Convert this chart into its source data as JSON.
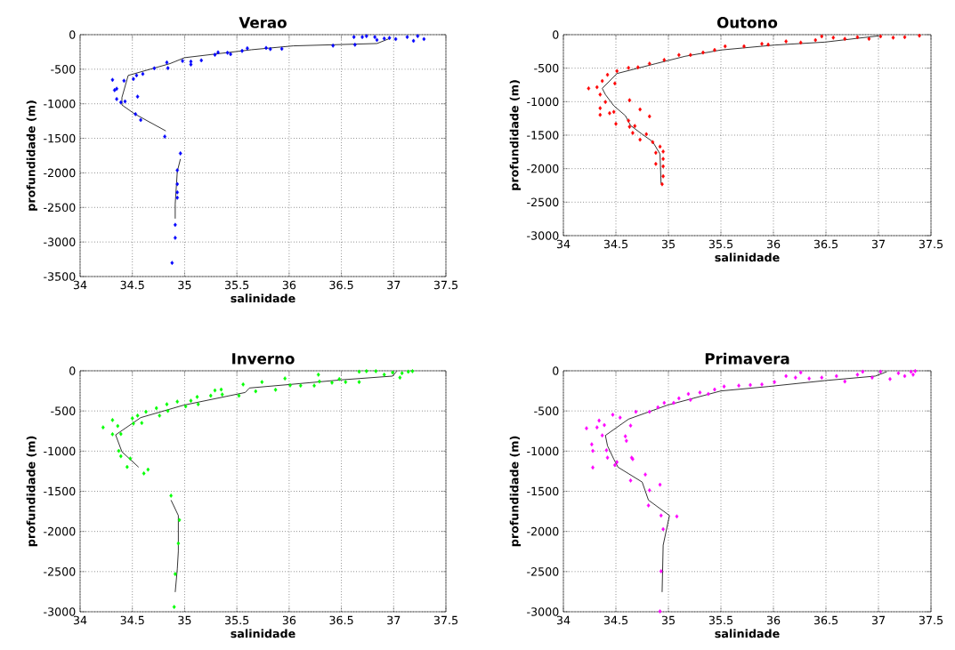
{
  "chart_data": [
    {
      "type": "scatter",
      "title": "Verao",
      "xlabel": "salinidade",
      "ylabel": "profundidade (m)",
      "xlim": [
        34,
        37.5
      ],
      "xticks": [
        34,
        34.5,
        35,
        35.5,
        36,
        36.5,
        37,
        37.5
      ],
      "ylim": [
        -3500,
        0
      ],
      "yticks": [
        -3500,
        -3000,
        -2500,
        -2000,
        -1500,
        -1000,
        -500,
        0
      ],
      "grid": true,
      "marker": "diamond",
      "series": [
        {
          "type": "scatter",
          "color": "#0000ff",
          "x": [
            34.31,
            34.33,
            34.35,
            34.35,
            34.39,
            34.43,
            34.42,
            34.51,
            34.55,
            34.54,
            34.6,
            34.53,
            34.58,
            34.81,
            34.71,
            34.83,
            34.84,
            34.98,
            35.06,
            35.06,
            35.16,
            35.29,
            35.32,
            35.41,
            35.44,
            35.55,
            35.6,
            35.78,
            35.82,
            35.93,
            36.42,
            36.63,
            36.62,
            36.7,
            36.74,
            36.82,
            36.84,
            36.91,
            36.96,
            37.02,
            37.13,
            37.19,
            37.23,
            37.29,
            34.96,
            34.93,
            34.93,
            34.93,
            34.93,
            34.91,
            34.91,
            34.88
          ],
          "values": [
            -654,
            -803,
            -782,
            -932,
            -979,
            -966,
            -667,
            -641,
            -897,
            -590,
            -568,
            -1150,
            -1235,
            -1474,
            -487,
            -402,
            -483,
            -380,
            -389,
            -432,
            -372,
            -291,
            -256,
            -261,
            -282,
            -235,
            -197,
            -192,
            -209,
            -205,
            -158,
            -145,
            -34,
            -34,
            -21,
            -34,
            -77,
            -56,
            -47,
            -64,
            -34,
            -90,
            -21,
            -64,
            -1718,
            -1962,
            -2162,
            -2282,
            -2359,
            -2752,
            -2940,
            -3303
          ]
        },
        {
          "type": "line",
          "color": "#000000",
          "marker": "none",
          "x": [
            36.96,
            36.84,
            36.04,
            35.64,
            35.0,
            34.86,
            34.46,
            34.4,
            34.4,
            34.52,
            34.82,
            34.9,
            34.96,
            34.93,
            34.91,
            34.91
          ],
          "values": [
            -56,
            -128,
            -162,
            -218,
            -333,
            -419,
            -590,
            -910,
            -1017,
            -1145,
            -1393,
            null,
            -1799,
            -1979,
            -2449,
            -2662
          ]
        }
      ]
    },
    {
      "type": "scatter",
      "title": "Outono",
      "xlabel": "salinidade",
      "ylabel": "profundidade (m)",
      "xlim": [
        34,
        37.5
      ],
      "xticks": [
        34,
        34.5,
        35,
        35.5,
        36,
        36.5,
        37,
        37.5
      ],
      "ylim": [
        -3000,
        0
      ],
      "yticks": [
        -3000,
        -2500,
        -2000,
        -1500,
        -1000,
        -500,
        0
      ],
      "grid": true,
      "marker": "diamond",
      "series": [
        {
          "type": "scatter",
          "color": "#ff0000",
          "x": [
            37.39,
            37.25,
            37.14,
            37.02,
            36.91,
            36.8,
            36.68,
            36.57,
            36.46,
            36.4,
            36.26,
            36.12,
            35.95,
            35.89,
            35.72,
            35.54,
            35.44,
            35.33,
            35.21,
            35.1,
            34.96,
            34.82,
            34.71,
            34.62,
            34.51,
            34.42,
            34.37,
            34.24,
            34.32,
            34.35,
            34.4,
            34.49,
            34.63,
            34.73,
            34.82,
            34.35,
            34.35,
            34.44,
            34.48,
            34.5,
            34.62,
            34.63,
            34.68,
            34.66,
            34.79,
            34.73,
            34.85,
            34.88,
            34.92,
            34.95,
            34.88,
            34.95,
            34.95,
            34.95,
            34.94
          ],
          "values": [
            -15,
            -37,
            -44,
            -26,
            -63,
            -37,
            -63,
            -44,
            -26,
            -81,
            -118,
            -100,
            -148,
            -137,
            -174,
            -174,
            -229,
            -266,
            -303,
            -303,
            -377,
            -432,
            -488,
            -495,
            -543,
            -599,
            -691,
            -802,
            -784,
            -894,
            -1005,
            -728,
            -979,
            -1116,
            -1220,
            -1098,
            -1197,
            -1172,
            -1153,
            -1331,
            -1283,
            -1375,
            -1364,
            -1467,
            -1486,
            -1567,
            -1604,
            -1763,
            -1671,
            -1745,
            -1929,
            -1855,
            -1966,
            -2114,
            -2232
          ]
        },
        {
          "type": "line",
          "color": "#000000",
          "marker": "none",
          "x": [
            37.0,
            36.49,
            36.01,
            35.5,
            35.16,
            34.88,
            34.51,
            34.37,
            34.4,
            34.48,
            34.59,
            34.64,
            34.75,
            34.85,
            34.92,
            34.93
          ],
          "values": [
            -18,
            -111,
            -155,
            -229,
            -322,
            -432,
            -580,
            -802,
            -894,
            -1061,
            -1209,
            -1356,
            -1486,
            -1597,
            -1781,
            -2225
          ]
        }
      ]
    },
    {
      "type": "scatter",
      "title": "Inverno",
      "xlabel": "salinidade",
      "ylabel": "profundidade (m)",
      "xlim": [
        34,
        37.5
      ],
      "xticks": [
        34,
        34.5,
        35,
        35.5,
        36,
        36.5,
        37,
        37.5
      ],
      "ylim": [
        -3000,
        0
      ],
      "yticks": [
        -3000,
        -2500,
        -2000,
        -1500,
        -1000,
        -500,
        0
      ],
      "grid": true,
      "marker": "diamond",
      "series": [
        {
          "type": "scatter",
          "color": "#00ff00",
          "x": [
            34.22,
            34.31,
            34.31,
            34.36,
            34.37,
            34.39,
            34.39,
            34.45,
            34.48,
            34.51,
            34.5,
            34.55,
            34.59,
            34.61,
            34.65,
            34.63,
            34.73,
            34.76,
            34.84,
            34.83,
            34.93,
            35.01,
            35.06,
            35.12,
            35.13,
            35.25,
            35.29,
            35.35,
            35.36,
            35.52,
            35.56,
            35.68,
            35.74,
            35.87,
            35.96,
            36.01,
            36.11,
            36.24,
            36.28,
            36.29,
            36.41,
            36.48,
            36.54,
            36.67,
            36.67,
            36.74,
            36.83,
            36.91,
            36.99,
            37.06,
            37.08,
            37.14,
            37.18,
            34.87,
            34.95,
            34.94,
            34.91,
            34.9
          ],
          "values": [
            -705,
            -613,
            -790,
            -687,
            -997,
            -1064,
            -787,
            -1197,
            -1093,
            -657,
            -591,
            -558,
            -650,
            -1278,
            -1230,
            -510,
            -465,
            -558,
            -499,
            -417,
            -384,
            -443,
            -373,
            -325,
            -417,
            -310,
            -244,
            -233,
            -295,
            -310,
            -170,
            -255,
            -140,
            -236,
            -96,
            -181,
            -185,
            -185,
            -48,
            -133,
            -148,
            -103,
            -140,
            -11,
            -140,
            -5,
            -5,
            -48,
            -22,
            -85,
            -30,
            -11,
            -5,
            -1555,
            -1858,
            -2149,
            -2530,
            -2940
          ]
        },
        {
          "type": "line",
          "color": "#000000",
          "marker": "none",
          "x": [
            37.03,
            36.99,
            36.49,
            36.01,
            35.62,
            35.58,
            34.99,
            34.58,
            34.34,
            34.4,
            34.56,
            34.7,
            34.87,
            34.94,
            34.94,
            34.93,
            34.91
          ],
          "values": [
            -5,
            -66,
            -114,
            -170,
            -214,
            -270,
            -428,
            -583,
            -798,
            -1008,
            -1200,
            null,
            -1610,
            -1802,
            -2245,
            -2467,
            -2755
          ]
        }
      ]
    },
    {
      "type": "scatter",
      "title": "Primavera",
      "xlabel": "salinidade",
      "ylabel": "profundidade (m)",
      "xlim": [
        34,
        37.5
      ],
      "xticks": [
        34,
        34.5,
        35,
        35.5,
        36,
        36.5,
        37,
        37.5
      ],
      "ylim": [
        -3000,
        0
      ],
      "yticks": [
        -3000,
        -2500,
        -2000,
        -1500,
        -1000,
        -500,
        0
      ],
      "grid": true,
      "marker": "diamond",
      "series": [
        {
          "type": "scatter",
          "color": "#ff00ff",
          "x": [
            34.22,
            34.27,
            34.28,
            34.28,
            34.32,
            34.34,
            34.37,
            34.39,
            34.41,
            34.42,
            34.47,
            34.49,
            34.51,
            34.54,
            34.59,
            34.6,
            34.64,
            34.65,
            34.64,
            34.66,
            34.69,
            34.78,
            34.82,
            34.81,
            34.92,
            34.93,
            34.95,
            35.08,
            34.93,
            34.92,
            34.82,
            34.96,
            35.1,
            35.19,
            35.3,
            35.44,
            35.53,
            35.67,
            35.78,
            35.89,
            36.01,
            36.12,
            36.21,
            36.26,
            36.34,
            36.46,
            36.6,
            36.68,
            36.8,
            36.85,
            36.94,
            37.02,
            37.11,
            37.19,
            37.25,
            37.31,
            37.33,
            37.35,
            34.9,
            35.05,
            35.21,
            35.38
          ],
          "values": [
            -716,
            -916,
            -997,
            -1204,
            -705,
            -620,
            -805,
            -676,
            -990,
            -1082,
            -547,
            -1174,
            -1137,
            -583,
            -816,
            -872,
            -683,
            -1082,
            -1366,
            -1100,
            -510,
            -1292,
            -1488,
            -1677,
            -1418,
            -1802,
            -1972,
            -1813,
            -2496,
            -2995,
            -510,
            -399,
            -343,
            -288,
            -270,
            -233,
            -196,
            -185,
            -177,
            -170,
            -140,
            -66,
            -85,
            -22,
            -96,
            -85,
            -66,
            -133,
            -48,
            -11,
            -85,
            -11,
            -103,
            -30,
            -66,
            -11,
            -48,
            -3,
            -454,
            -399,
            -362,
            -288
          ]
        },
        {
          "type": "line",
          "color": "#000000",
          "marker": "none",
          "x": [
            37.08,
            36.97,
            36.49,
            35.95,
            35.5,
            34.99,
            34.62,
            34.4,
            34.42,
            34.48,
            34.52,
            34.75,
            34.81,
            35.01,
            34.95,
            34.94
          ],
          "values": [
            -11,
            -66,
            -122,
            -196,
            -251,
            -428,
            -602,
            -805,
            -934,
            -1100,
            -1200,
            -1385,
            -1610,
            -1802,
            -2171,
            -2755
          ]
        }
      ]
    }
  ]
}
